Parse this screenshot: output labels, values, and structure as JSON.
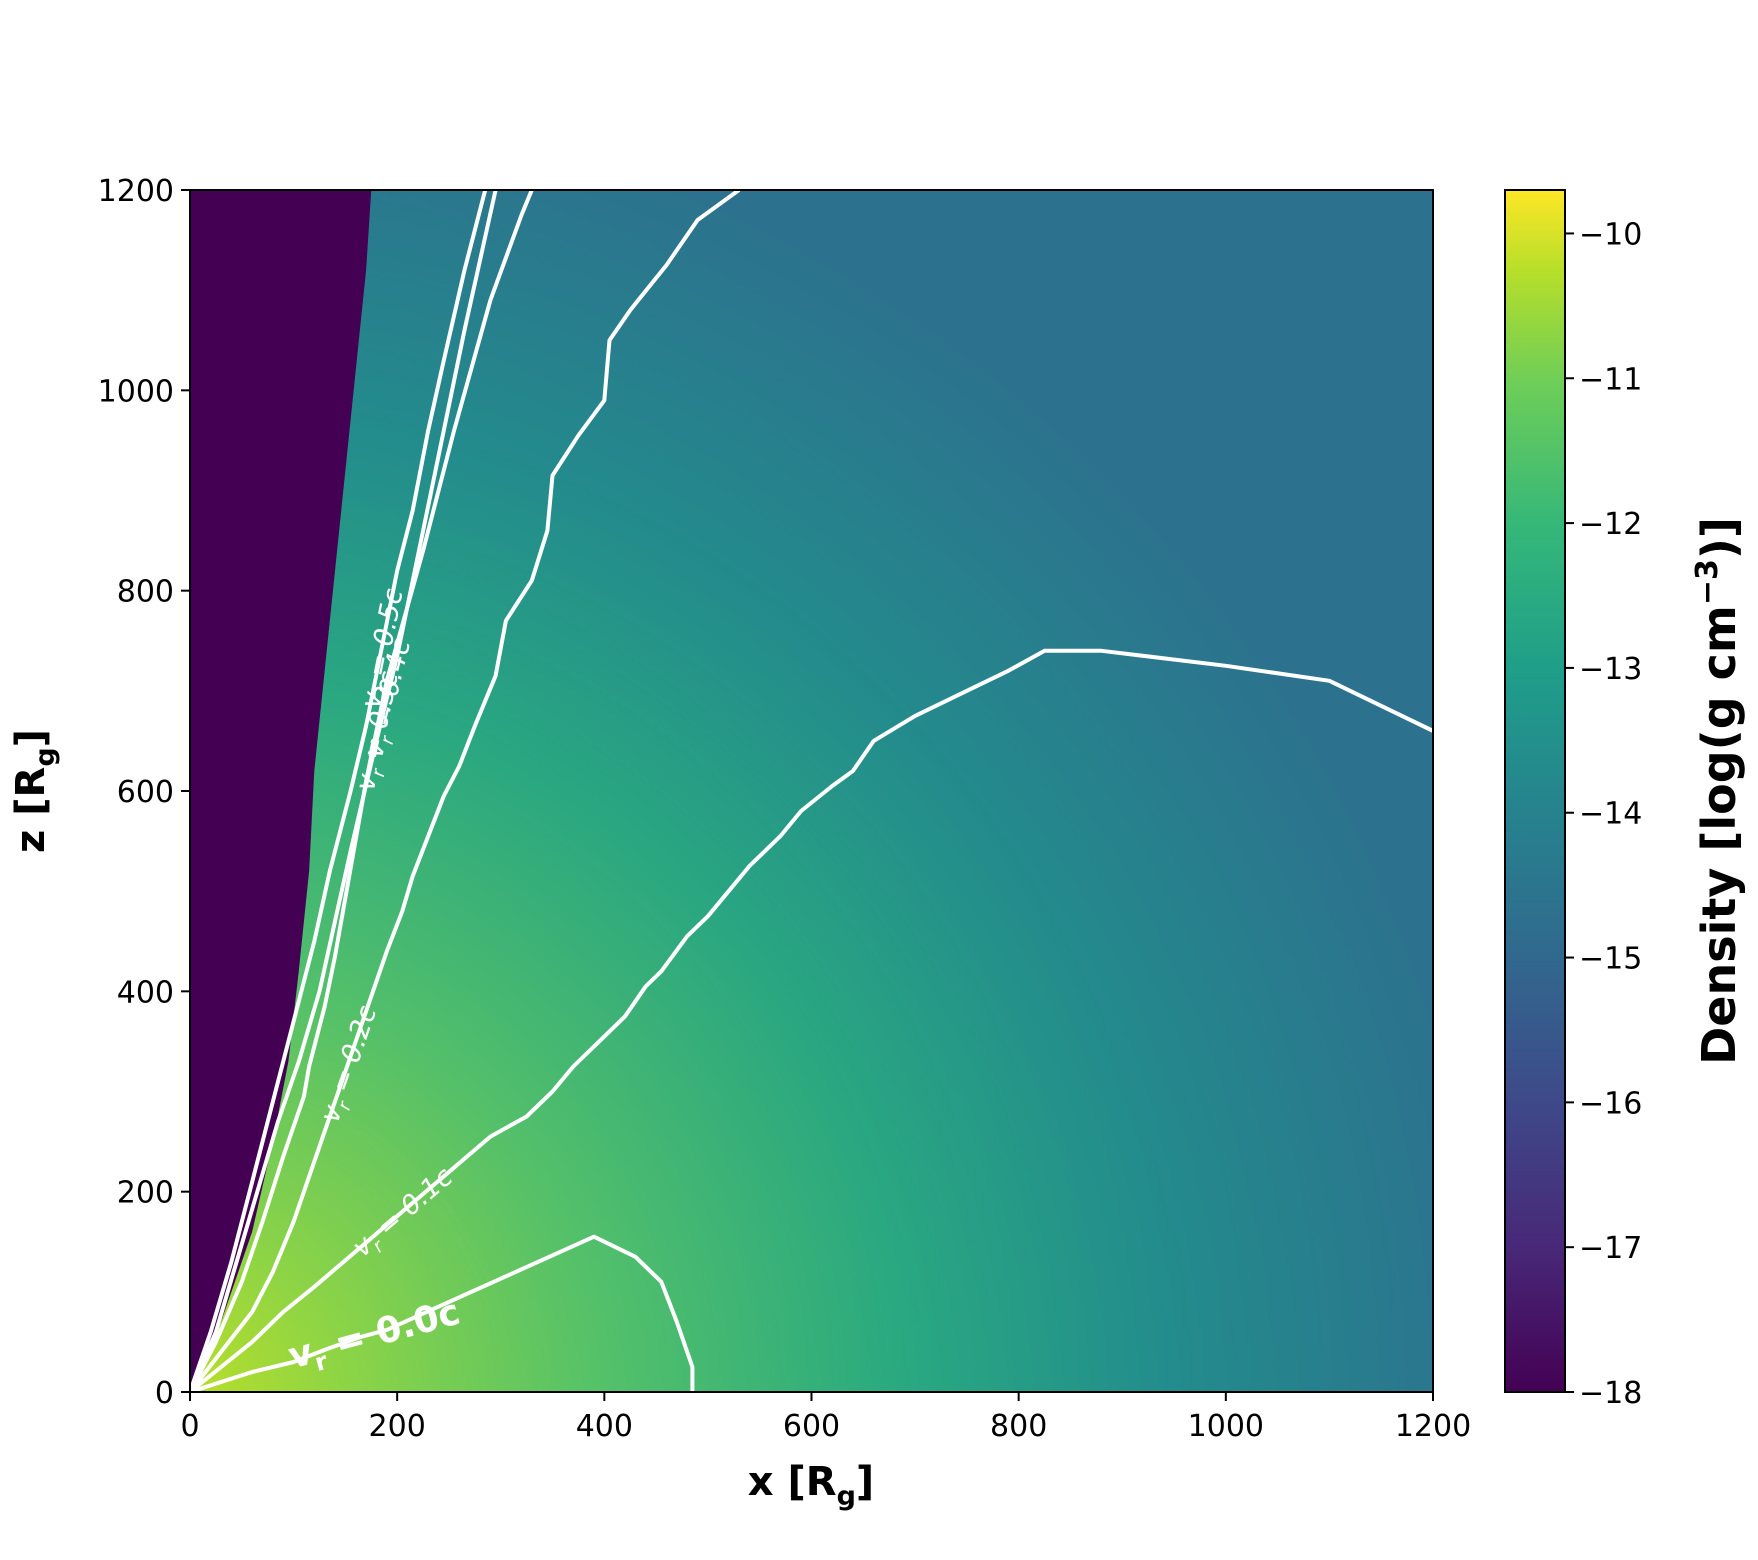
{
  "chart_data": {
    "type": "heatmap",
    "colormap": "viridis",
    "xlabel": "x [R",
    "xlabel_sub": "g",
    "xlabel_close": "]",
    "ylabel": "z [R",
    "ylabel_sub": "g",
    "ylabel_close": "]",
    "xlim": [
      0,
      1200
    ],
    "ylim": [
      0,
      1200
    ],
    "xticks": [
      0,
      200,
      400,
      600,
      800,
      1000,
      1200
    ],
    "yticks": [
      0,
      200,
      400,
      600,
      800,
      1000,
      1200
    ],
    "xtick_labels": [
      "0",
      "200",
      "400",
      "600",
      "800",
      "1000",
      "1200"
    ],
    "ytick_labels": [
      "0",
      "200",
      "400",
      "600",
      "800",
      "1000",
      "1200"
    ],
    "colorbar": {
      "label_main": "Density [log(g cm",
      "label_sup": "−3",
      "label_close": ")]",
      "range": [
        -18,
        -9.7
      ],
      "ticks": [
        -18,
        -17,
        -16,
        -15,
        -14,
        -13,
        -12,
        -11,
        -10
      ],
      "tick_labels": [
        "−18",
        "−17",
        "−16",
        "−15",
        "−14",
        "−13",
        "−12",
        "−11",
        "−10"
      ]
    },
    "contours": [
      {
        "label": "0.0c",
        "level": 0.0,
        "bold": true,
        "points": [
          [
            0,
            0
          ],
          [
            60,
            20
          ],
          [
            100,
            30
          ],
          [
            130,
            42
          ],
          [
            165,
            55
          ],
          [
            190,
            62
          ],
          [
            390,
            155
          ],
          [
            430,
            135
          ],
          [
            455,
            110
          ],
          [
            470,
            70
          ],
          [
            485,
            25
          ],
          [
            485,
            0
          ]
        ]
      },
      {
        "label": "0.1c",
        "level": 0.1,
        "points": [
          [
            0,
            0
          ],
          [
            30,
            25
          ],
          [
            60,
            50
          ],
          [
            90,
            80
          ],
          [
            120,
            105
          ],
          [
            290,
            255
          ],
          [
            325,
            275
          ],
          [
            350,
            300
          ],
          [
            370,
            325
          ],
          [
            395,
            350
          ],
          [
            420,
            375
          ],
          [
            440,
            405
          ],
          [
            455,
            420
          ],
          [
            480,
            455
          ],
          [
            500,
            475
          ],
          [
            540,
            525
          ],
          [
            570,
            555
          ],
          [
            590,
            580
          ],
          [
            620,
            605
          ],
          [
            640,
            620
          ],
          [
            660,
            650
          ],
          [
            700,
            675
          ],
          [
            750,
            700
          ],
          [
            790,
            720
          ],
          [
            825,
            740
          ],
          [
            880,
            740
          ],
          [
            1000,
            725
          ],
          [
            1100,
            710
          ],
          [
            1200,
            660
          ]
        ]
      },
      {
        "label": "0.2c",
        "level": 0.2,
        "points": [
          [
            0,
            0
          ],
          [
            30,
            40
          ],
          [
            60,
            80
          ],
          [
            80,
            120
          ],
          [
            100,
            170
          ],
          [
            115,
            215
          ],
          [
            190,
            440
          ],
          [
            205,
            480
          ],
          [
            215,
            515
          ],
          [
            230,
            555
          ],
          [
            245,
            595
          ],
          [
            260,
            625
          ],
          [
            275,
            665
          ],
          [
            295,
            715
          ],
          [
            305,
            770
          ],
          [
            330,
            810
          ],
          [
            345,
            860
          ],
          [
            350,
            915
          ],
          [
            375,
            955
          ],
          [
            400,
            990
          ],
          [
            405,
            1050
          ],
          [
            425,
            1080
          ],
          [
            460,
            1125
          ],
          [
            490,
            1170
          ],
          [
            530,
            1200
          ]
        ]
      },
      {
        "label": "0.3c",
        "level": 0.3,
        "points": [
          [
            0,
            0
          ],
          [
            25,
            50
          ],
          [
            50,
            110
          ],
          [
            70,
            170
          ],
          [
            90,
            235
          ],
          [
            110,
            295
          ],
          [
            115,
            325
          ],
          [
            130,
            385
          ],
          [
            140,
            435
          ],
          [
            170,
            610
          ],
          [
            190,
            710
          ],
          [
            225,
            840
          ],
          [
            255,
            960
          ],
          [
            290,
            1090
          ],
          [
            320,
            1175
          ],
          [
            330,
            1200
          ]
        ]
      },
      {
        "label": "0.4c",
        "level": 0.4,
        "points": [
          [
            0,
            0
          ],
          [
            25,
            60
          ],
          [
            45,
            130
          ],
          [
            65,
            200
          ],
          [
            85,
            270
          ],
          [
            105,
            330
          ],
          [
            125,
            400
          ],
          [
            140,
            470
          ],
          [
            155,
            540
          ],
          [
            180,
            650
          ],
          [
            200,
            735
          ],
          [
            225,
            860
          ],
          [
            245,
            960
          ],
          [
            265,
            1060
          ],
          [
            295,
            1200
          ]
        ]
      },
      {
        "label": "0.5c",
        "level": 0.5,
        "points": [
          [
            0,
            0
          ],
          [
            20,
            60
          ],
          [
            40,
            130
          ],
          [
            60,
            210
          ],
          [
            80,
            290
          ],
          [
            100,
            370
          ],
          [
            120,
            450
          ],
          [
            135,
            520
          ],
          [
            155,
            600
          ],
          [
            170,
            665
          ],
          [
            200,
            820
          ],
          [
            215,
            880
          ],
          [
            230,
            960
          ],
          [
            245,
            1030
          ],
          [
            265,
            1120
          ],
          [
            285,
            1200
          ]
        ]
      }
    ],
    "contour_label_prefix": "v",
    "contour_label_sub": "r",
    "contour_label_eq": " = ",
    "jet_funnel_boundary": [
      [
        0,
        0
      ],
      [
        30,
        70
      ],
      [
        60,
        160
      ],
      [
        80,
        250
      ],
      [
        95,
        330
      ],
      [
        105,
        420
      ],
      [
        115,
        520
      ],
      [
        120,
        620
      ],
      [
        130,
        720
      ],
      [
        140,
        820
      ],
      [
        150,
        920
      ],
      [
        160,
        1020
      ],
      [
        170,
        1120
      ],
      [
        175,
        1200
      ]
    ]
  }
}
